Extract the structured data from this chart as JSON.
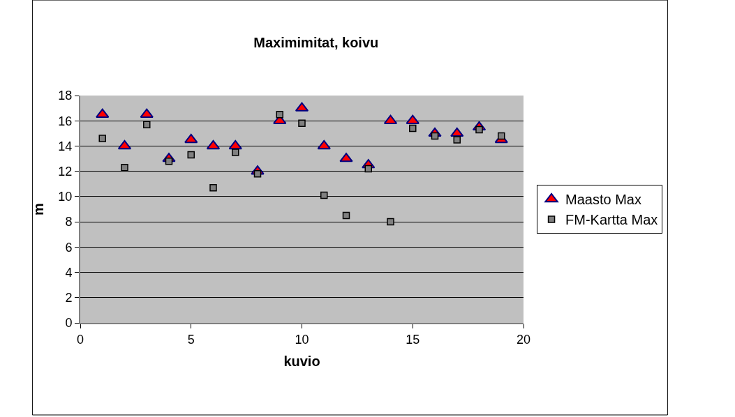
{
  "chart_data": {
    "type": "scatter",
    "title": "Maximimitat, koivu",
    "xlabel": "kuvio",
    "ylabel": "m",
    "x": [
      1,
      2,
      3,
      4,
      5,
      6,
      7,
      8,
      9,
      10,
      11,
      12,
      13,
      14,
      15,
      16,
      17,
      18,
      19
    ],
    "series": [
      {
        "name": "Maasto Max",
        "color": "#ff0000",
        "marker": "triangle",
        "values": [
          16.5,
          14,
          16.5,
          13,
          14.5,
          14,
          14,
          12,
          16,
          17,
          14,
          13,
          12.5,
          16,
          16,
          15,
          15,
          15.5,
          14.5
        ]
      },
      {
        "name": "FM-Kartta Max",
        "color": "#808080",
        "marker": "square",
        "values": [
          14.6,
          12.3,
          15.7,
          12.8,
          13.3,
          10.7,
          13.5,
          11.8,
          16.5,
          15.8,
          10.1,
          8.5,
          12.2,
          8.0,
          15.4,
          14.8,
          14.5,
          15.3,
          14.8
        ]
      }
    ],
    "xlim": [
      0,
      20
    ],
    "xticks": [
      0,
      5,
      10,
      15,
      20
    ],
    "ylim": [
      0,
      18
    ],
    "yticks": [
      0,
      2,
      4,
      6,
      8,
      10,
      12,
      14,
      16,
      18
    ],
    "grid": "y",
    "legend": "right"
  }
}
